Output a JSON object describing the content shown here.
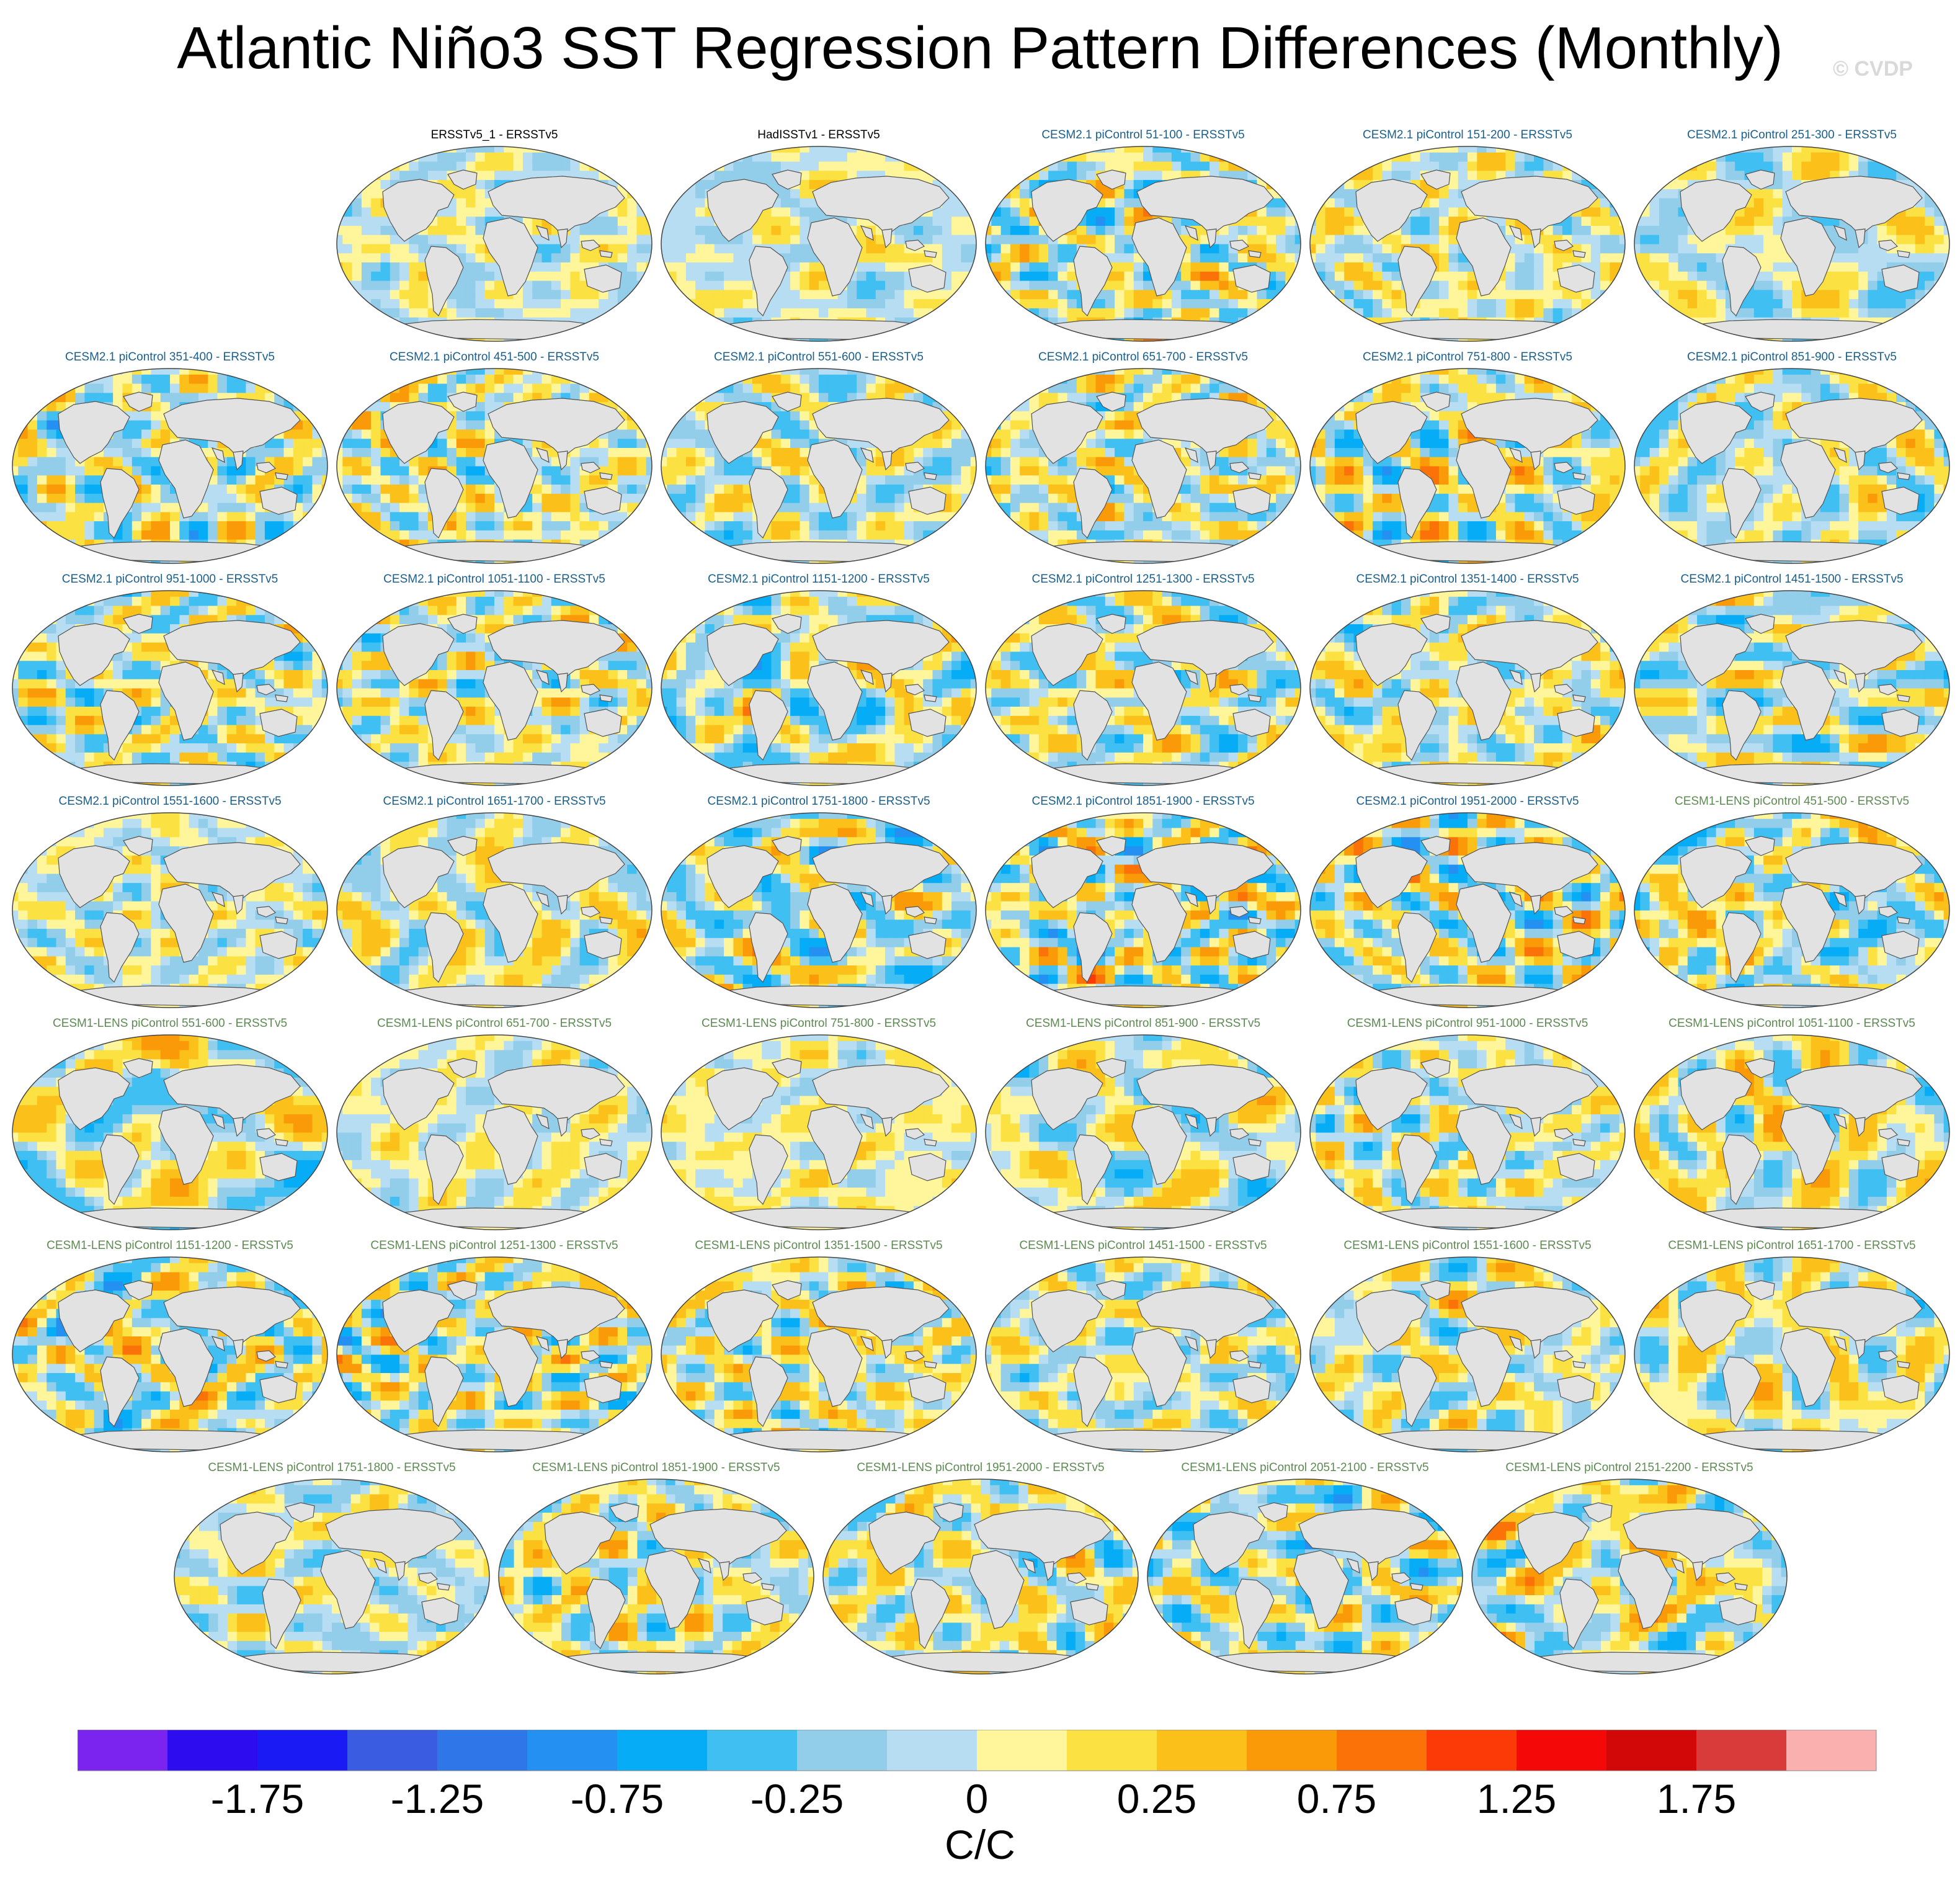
{
  "title": "Atlantic Niño3 SST Regression Pattern Differences (Monthly)",
  "watermark": "© CVDP",
  "colors": {
    "obs_label": "#000000",
    "cesm2_label": "#1a5f8c",
    "cesm1_label": "#5d8a52",
    "land": "#e2e2e2",
    "coast": "#555555"
  },
  "chart_data": {
    "type": "heatmap",
    "projection": "Robinson",
    "variable": "SST regression difference",
    "panels": [
      {
        "label": "ERSSTv5_1 - ERSSTv5",
        "group": "obs",
        "seed": 1
      },
      {
        "label": "HadISSTv1 - ERSSTv5",
        "group": "obs",
        "seed": 2
      },
      {
        "label": "CESM2.1 piControl 51-100 - ERSSTv5",
        "group": "cesm2",
        "seed": 3
      },
      {
        "label": "CESM2.1 piControl 151-200 - ERSSTv5",
        "group": "cesm2",
        "seed": 4
      },
      {
        "label": "CESM2.1 piControl 251-300 - ERSSTv5",
        "group": "cesm2",
        "seed": 5
      },
      {
        "label": "CESM2.1 piControl 351-400 - ERSSTv5",
        "group": "cesm2",
        "seed": 6
      },
      {
        "label": "CESM2.1 piControl 451-500 - ERSSTv5",
        "group": "cesm2",
        "seed": 7
      },
      {
        "label": "CESM2.1 piControl 551-600 - ERSSTv5",
        "group": "cesm2",
        "seed": 8
      },
      {
        "label": "CESM2.1 piControl 651-700 - ERSSTv5",
        "group": "cesm2",
        "seed": 9
      },
      {
        "label": "CESM2.1 piControl 751-800 - ERSSTv5",
        "group": "cesm2",
        "seed": 10
      },
      {
        "label": "CESM2.1 piControl 851-900 - ERSSTv5",
        "group": "cesm2",
        "seed": 11
      },
      {
        "label": "CESM2.1 piControl 951-1000 - ERSSTv5",
        "group": "cesm2",
        "seed": 12
      },
      {
        "label": "CESM2.1 piControl 1051-1100 - ERSSTv5",
        "group": "cesm2",
        "seed": 13
      },
      {
        "label": "CESM2.1 piControl 1151-1200 - ERSSTv5",
        "group": "cesm2",
        "seed": 14
      },
      {
        "label": "CESM2.1 piControl 1251-1300 - ERSSTv5",
        "group": "cesm2",
        "seed": 15
      },
      {
        "label": "CESM2.1 piControl 1351-1400 - ERSSTv5",
        "group": "cesm2",
        "seed": 16
      },
      {
        "label": "CESM2.1 piControl 1451-1500 - ERSSTv5",
        "group": "cesm2",
        "seed": 17
      },
      {
        "label": "CESM2.1 piControl 1551-1600 - ERSSTv5",
        "group": "cesm2",
        "seed": 18
      },
      {
        "label": "CESM2.1 piControl 1651-1700 - ERSSTv5",
        "group": "cesm2",
        "seed": 19
      },
      {
        "label": "CESM2.1 piControl 1751-1800 - ERSSTv5",
        "group": "cesm2",
        "seed": 20
      },
      {
        "label": "CESM2.1 piControl 1851-1900 - ERSSTv5",
        "group": "cesm2",
        "seed": 21
      },
      {
        "label": "CESM2.1 piControl 1951-2000 - ERSSTv5",
        "group": "cesm2",
        "seed": 22
      },
      {
        "label": "CESM1-LENS piControl 451-500 - ERSSTv5",
        "group": "cesm1",
        "seed": 23
      },
      {
        "label": "CESM1-LENS piControl 551-600 - ERSSTv5",
        "group": "cesm1",
        "seed": 24
      },
      {
        "label": "CESM1-LENS piControl 651-700 - ERSSTv5",
        "group": "cesm1",
        "seed": 25
      },
      {
        "label": "CESM1-LENS piControl 751-800 - ERSSTv5",
        "group": "cesm1",
        "seed": 26
      },
      {
        "label": "CESM1-LENS piControl 851-900 - ERSSTv5",
        "group": "cesm1",
        "seed": 27
      },
      {
        "label": "CESM1-LENS piControl 951-1000 - ERSSTv5",
        "group": "cesm1",
        "seed": 28
      },
      {
        "label": "CESM1-LENS piControl 1051-1100 - ERSSTv5",
        "group": "cesm1",
        "seed": 29
      },
      {
        "label": "CESM1-LENS piControl 1151-1200 - ERSSTv5",
        "group": "cesm1",
        "seed": 30
      },
      {
        "label": "CESM1-LENS piControl 1251-1300 - ERSSTv5",
        "group": "cesm1",
        "seed": 31
      },
      {
        "label": "CESM1-LENS piControl 1351-1500 - ERSSTv5",
        "group": "cesm1",
        "seed": 32
      },
      {
        "label": "CESM1-LENS piControl 1451-1500 - ERSSTv5",
        "group": "cesm1",
        "seed": 33
      },
      {
        "label": "CESM1-LENS piControl 1551-1600 - ERSSTv5",
        "group": "cesm1",
        "seed": 34
      },
      {
        "label": "CESM1-LENS piControl 1651-1700 - ERSSTv5",
        "group": "cesm1",
        "seed": 35
      },
      {
        "label": "CESM1-LENS piControl 1751-1800 - ERSSTv5",
        "group": "cesm1",
        "seed": 36
      },
      {
        "label": "CESM1-LENS piControl 1851-1900 - ERSSTv5",
        "group": "cesm1",
        "seed": 37
      },
      {
        "label": "CESM1-LENS piControl 1951-2000 - ERSSTv5",
        "group": "cesm1",
        "seed": 38
      },
      {
        "label": "CESM1-LENS piControl 2051-2100 - ERSSTv5",
        "group": "cesm1",
        "seed": 39
      },
      {
        "label": "CESM1-LENS piControl 2151-2200 - ERSSTv5",
        "group": "cesm1",
        "seed": 40
      }
    ],
    "colorbar": {
      "levels": [
        -2,
        -1.75,
        -1.5,
        -1.25,
        -1,
        -0.75,
        -0.5,
        -0.25,
        -0.1,
        0,
        0.1,
        0.25,
        0.5,
        0.75,
        1,
        1.25,
        1.5,
        1.75,
        2
      ],
      "colors": [
        "#7b23ef",
        "#2e0cf0",
        "#1a1af5",
        "#3a5ce0",
        "#2f77e8",
        "#2390f2",
        "#06acf5",
        "#3fbff2",
        "#92cde9",
        "#b7ddf3",
        "#fff59a",
        "#fbe141",
        "#fbc11a",
        "#fb9a08",
        "#fb7208",
        "#fb3a08",
        "#f40808",
        "#d20808",
        "#d93a3a",
        "#fbb0b0"
      ],
      "tick_labels": [
        "-1.75",
        "-1.25",
        "-0.75",
        "-0.25",
        "0",
        "0.25",
        "0.75",
        "1.25",
        "1.75"
      ],
      "units": "C/C"
    }
  }
}
